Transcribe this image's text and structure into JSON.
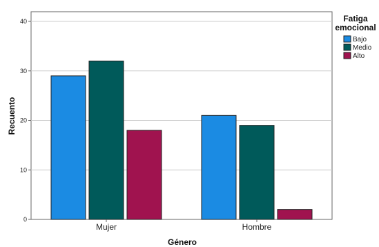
{
  "chart_data": {
    "type": "bar",
    "categories": [
      "Mujer",
      "Hombre"
    ],
    "series": [
      {
        "name": "Bajo",
        "color": "#1B8BE3",
        "values": [
          29,
          21
        ]
      },
      {
        "name": "Medio",
        "color": "#005A5A",
        "values": [
          32,
          19
        ]
      },
      {
        "name": "Alto",
        "color": "#A0134F",
        "values": [
          18,
          2
        ]
      }
    ],
    "xlabel": "Género",
    "ylabel": "Recuento",
    "ylim": [
      0,
      40
    ],
    "yticks": [
      0,
      10,
      20,
      30,
      40
    ],
    "grid": true,
    "legend": {
      "title_line1": "Fatiga",
      "title_line2": "emocional",
      "position": "top-right"
    }
  }
}
